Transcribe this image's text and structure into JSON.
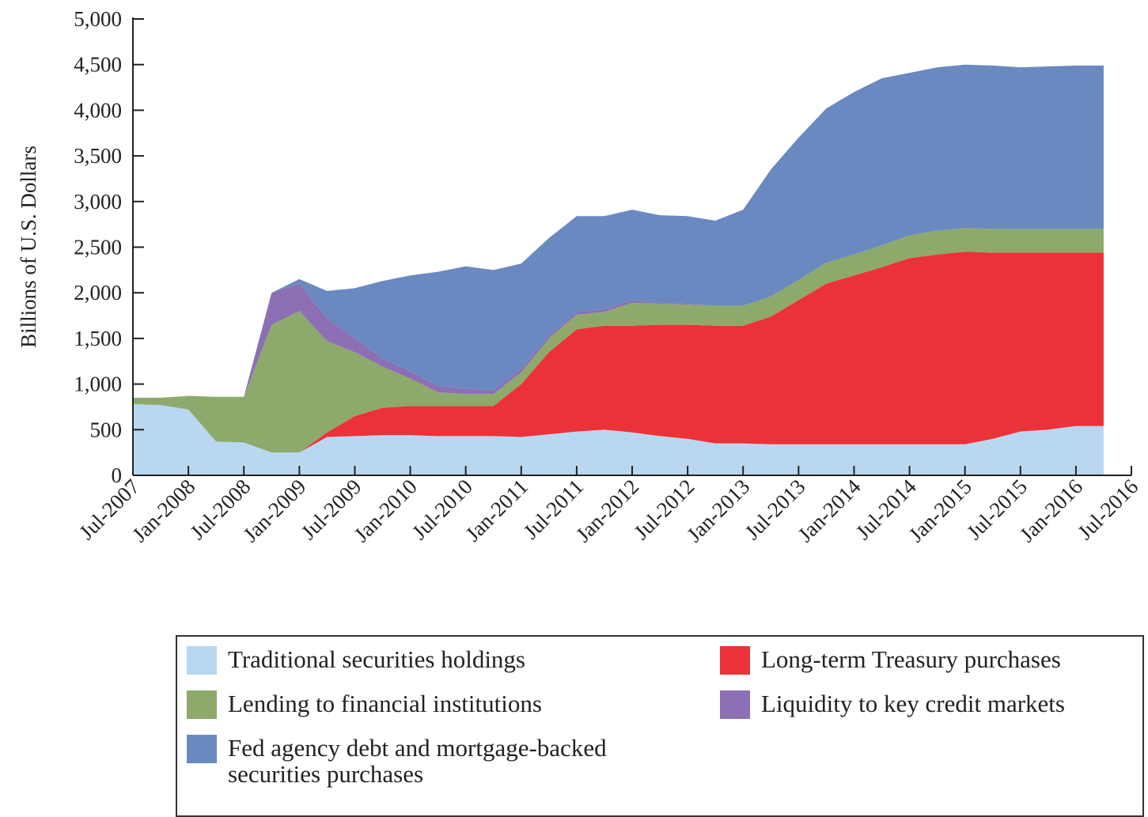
{
  "chart_data": {
    "type": "stacked_area",
    "ylabel": "Billions of U.S. Dollars",
    "x": [
      "2007-07",
      "2007-10",
      "2008-01",
      "2008-04",
      "2008-07",
      "2008-10",
      "2009-01",
      "2009-04",
      "2009-07",
      "2009-10",
      "2010-01",
      "2010-04",
      "2010-07",
      "2010-10",
      "2011-01",
      "2011-04",
      "2011-07",
      "2011-10",
      "2012-01",
      "2012-04",
      "2012-07",
      "2012-10",
      "2013-01",
      "2013-04",
      "2013-07",
      "2013-10",
      "2014-01",
      "2014-04",
      "2014-07",
      "2014-10",
      "2015-01",
      "2015-04",
      "2015-07",
      "2015-10",
      "2016-01",
      "2016-04"
    ],
    "series": [
      {
        "name": "Traditional securities holdings",
        "color": "#b9d7f0",
        "values": [
          780,
          770,
          720,
          370,
          360,
          250,
          250,
          420,
          430,
          440,
          440,
          430,
          430,
          430,
          420,
          450,
          480,
          500,
          470,
          430,
          400,
          350,
          350,
          340,
          340,
          340,
          340,
          340,
          340,
          340,
          340,
          400,
          480,
          500,
          540,
          540
        ]
      },
      {
        "name": "Long-term Treasury purchases",
        "color": "#ec3239",
        "values": [
          0,
          0,
          0,
          0,
          0,
          0,
          0,
          50,
          220,
          300,
          320,
          330,
          330,
          330,
          580,
          900,
          1120,
          1140,
          1170,
          1220,
          1250,
          1290,
          1290,
          1400,
          1580,
          1760,
          1850,
          1940,
          2040,
          2080,
          2110,
          2040,
          1960,
          1940,
          1900,
          1900
        ]
      },
      {
        "name": "Lending to financial institutions",
        "color": "#8ea96c",
        "values": [
          70,
          80,
          150,
          490,
          500,
          1400,
          1550,
          1000,
          700,
          450,
          300,
          150,
          130,
          130,
          130,
          150,
          160,
          150,
          250,
          230,
          220,
          220,
          220,
          220,
          220,
          230,
          230,
          240,
          250,
          260,
          260,
          260,
          260,
          260,
          260,
          260
        ]
      },
      {
        "name": "Liquidity to key credit markets",
        "color": "#8c6fb4",
        "values": [
          0,
          0,
          0,
          0,
          0,
          350,
          300,
          250,
          150,
          90,
          80,
          70,
          60,
          40,
          40,
          30,
          30,
          30,
          30,
          10,
          10,
          0,
          0,
          0,
          0,
          0,
          0,
          0,
          0,
          0,
          0,
          0,
          0,
          0,
          0,
          0
        ]
      },
      {
        "name": "Fed agency debt and mortgage-backed securities purchases",
        "color": "#6a89c0",
        "values": [
          0,
          0,
          0,
          0,
          0,
          0,
          50,
          300,
          550,
          850,
          1050,
          1250,
          1340,
          1320,
          1150,
          1070,
          1050,
          1020,
          990,
          960,
          960,
          930,
          1050,
          1390,
          1560,
          1690,
          1780,
          1830,
          1780,
          1790,
          1790,
          1790,
          1770,
          1780,
          1790,
          1790
        ]
      }
    ],
    "legend_order": [
      0,
      1,
      2,
      3,
      4
    ],
    "xlim": [
      "2007-07",
      "2016-07"
    ],
    "xticks": [
      {
        "value": "2007-07",
        "label": "Jul-2007"
      },
      {
        "value": "2008-01",
        "label": "Jan-2008"
      },
      {
        "value": "2008-07",
        "label": "Jul-2008"
      },
      {
        "value": "2009-01",
        "label": "Jan-2009"
      },
      {
        "value": "2009-07",
        "label": "Jul-2009"
      },
      {
        "value": "2010-01",
        "label": "Jan-2010"
      },
      {
        "value": "2010-07",
        "label": "Jul-2010"
      },
      {
        "value": "2011-01",
        "label": "Jan-2011"
      },
      {
        "value": "2011-07",
        "label": "Jul-2011"
      },
      {
        "value": "2012-01",
        "label": "Jan-2012"
      },
      {
        "value": "2012-07",
        "label": "Jul-2012"
      },
      {
        "value": "2013-01",
        "label": "Jan-2013"
      },
      {
        "value": "2013-07",
        "label": "Jul-2013"
      },
      {
        "value": "2014-01",
        "label": "Jan-2014"
      },
      {
        "value": "2014-07",
        "label": "Jul-2014"
      },
      {
        "value": "2015-01",
        "label": "Jan-2015"
      },
      {
        "value": "2015-07",
        "label": "Jul-2015"
      },
      {
        "value": "2016-01",
        "label": "Jan-2016"
      },
      {
        "value": "2016-07",
        "label": "Jul-2016"
      }
    ],
    "ylim": [
      0,
      5000
    ],
    "yticks": [
      0,
      {
        "value": 500,
        "label": "500"
      },
      {
        "value": 1000,
        "label": "1,000"
      },
      {
        "value": 1500,
        "label": "1,500"
      },
      {
        "value": 2000,
        "label": "2,000"
      },
      {
        "value": 2500,
        "label": "2,500"
      },
      {
        "value": 3000,
        "label": "3,000"
      },
      {
        "value": 3500,
        "label": "3,500"
      },
      {
        "value": 4000,
        "label": "4,000"
      },
      {
        "value": 4500,
        "label": "4,500"
      },
      {
        "value": 5000,
        "label": "5,000"
      }
    ]
  }
}
